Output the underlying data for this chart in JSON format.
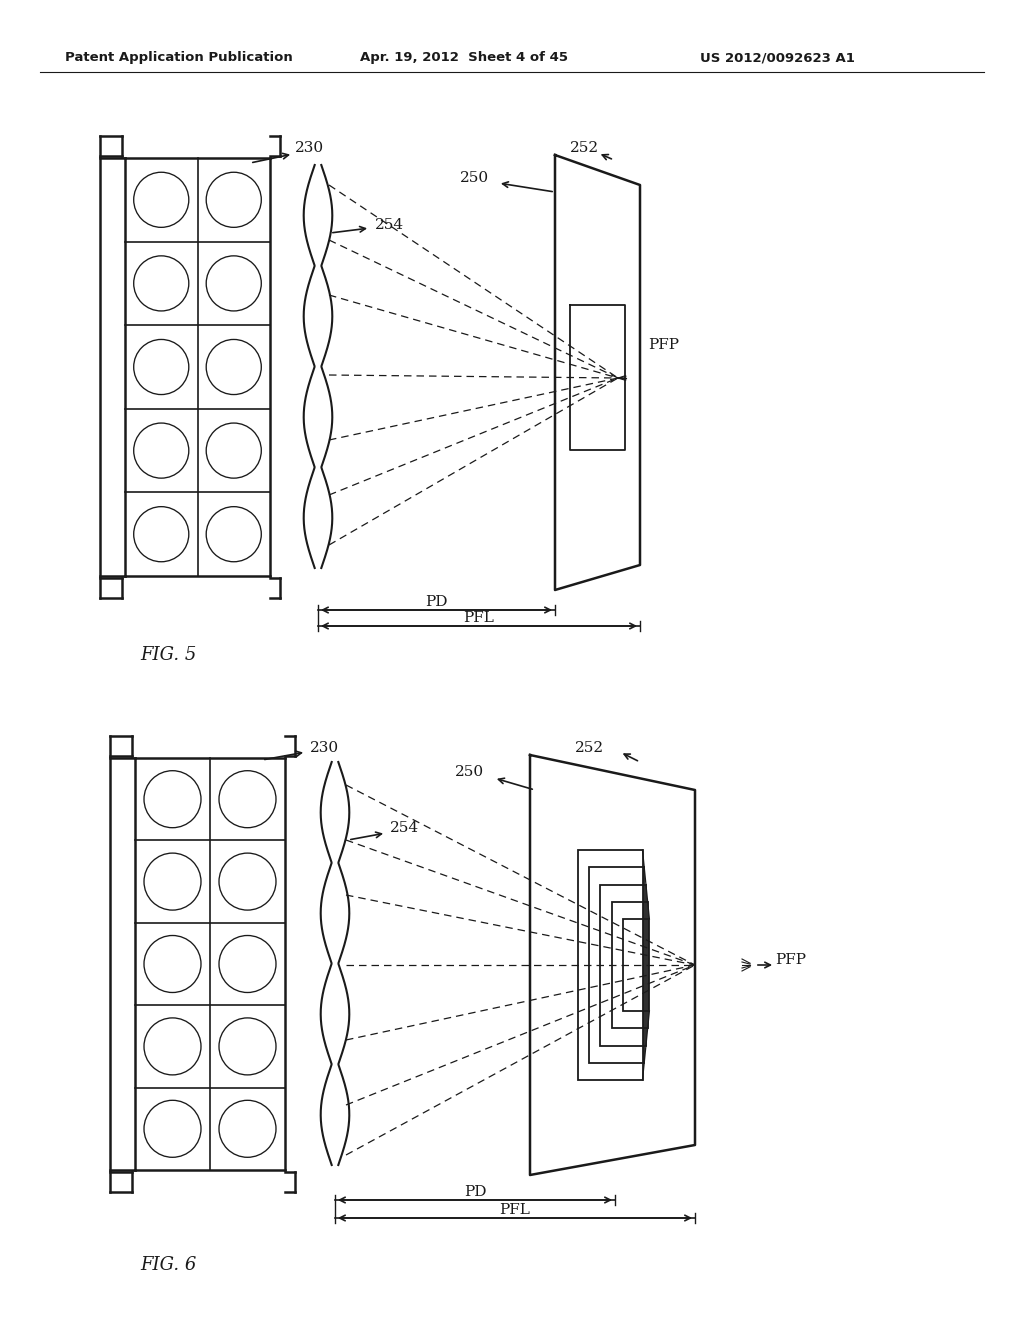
{
  "bg_color": "#ffffff",
  "line_color": "#1a1a1a",
  "header_text": "Patent Application Publication",
  "header_date": "Apr. 19, 2012  Sheet 4 of 45",
  "header_patent": "US 2012/0092623 A1"
}
